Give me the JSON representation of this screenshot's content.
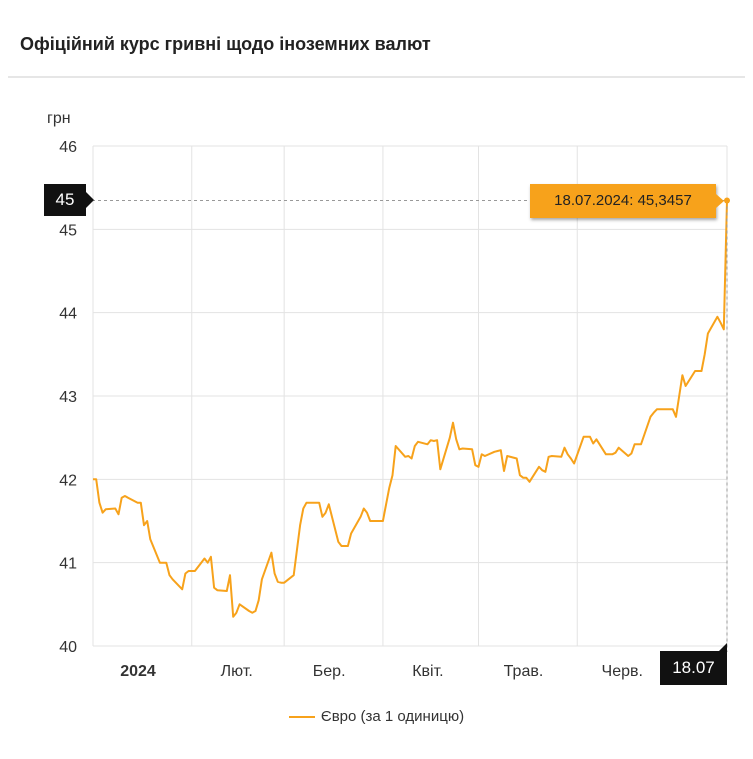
{
  "header": {
    "title": "Офіційний курс гривні щодо іноземних валют"
  },
  "tooltip": {
    "text": "18.07.2024: 45,3457"
  },
  "y_highlight": "45",
  "x_highlight": "18.07",
  "legend": {
    "label": "Євро (за 1 одиницю)"
  },
  "colors": {
    "series": "#f7a21b",
    "grid": "#e3e3e3",
    "flag": "#111111"
  },
  "chart_data": {
    "type": "line",
    "ylabel": "грн",
    "ylim": [
      40,
      46
    ],
    "yticks": [
      "40",
      "41",
      "42",
      "43",
      "44",
      "45",
      "46"
    ],
    "xticks": [
      {
        "label": "2024",
        "date": "2024-01-01",
        "bold": true
      },
      {
        "label": "Лют.",
        "date": "2024-02-01",
        "bold": false
      },
      {
        "label": "Бер.",
        "date": "2024-03-01",
        "bold": false
      },
      {
        "label": "Квіт.",
        "date": "2024-04-01",
        "bold": false
      },
      {
        "label": "Трав.",
        "date": "2024-05-01",
        "bold": false
      },
      {
        "label": "Черв.",
        "date": "2024-06-01",
        "bold": false
      }
    ],
    "xrange": [
      "2024-01-01",
      "2024-07-18"
    ],
    "grid": true,
    "legend_position": "bottom",
    "series": [
      {
        "name": "Євро (за 1 одиницю)",
        "points": [
          [
            "2024-01-01",
            42.0
          ],
          [
            "2024-01-02",
            42.0
          ],
          [
            "2024-01-03",
            41.72
          ],
          [
            "2024-01-04",
            41.6
          ],
          [
            "2024-01-05",
            41.64
          ],
          [
            "2024-01-08",
            41.65
          ],
          [
            "2024-01-09",
            41.58
          ],
          [
            "2024-01-10",
            41.78
          ],
          [
            "2024-01-11",
            41.8
          ],
          [
            "2024-01-12",
            41.78
          ],
          [
            "2024-01-15",
            41.72
          ],
          [
            "2024-01-16",
            41.72
          ],
          [
            "2024-01-17",
            41.45
          ],
          [
            "2024-01-18",
            41.5
          ],
          [
            "2024-01-19",
            41.28
          ],
          [
            "2024-01-22",
            41.0
          ],
          [
            "2024-01-23",
            41.0
          ],
          [
            "2024-01-24",
            41.0
          ],
          [
            "2024-01-25",
            40.85
          ],
          [
            "2024-01-26",
            40.8
          ],
          [
            "2024-01-29",
            40.68
          ],
          [
            "2024-01-30",
            40.87
          ],
          [
            "2024-01-31",
            40.9
          ],
          [
            "2024-02-01",
            40.9
          ],
          [
            "2024-02-02",
            40.9
          ],
          [
            "2024-02-05",
            41.05
          ],
          [
            "2024-02-06",
            41.0
          ],
          [
            "2024-02-07",
            41.07
          ],
          [
            "2024-02-08",
            40.7
          ],
          [
            "2024-02-09",
            40.67
          ],
          [
            "2024-02-12",
            40.66
          ],
          [
            "2024-02-13",
            40.85
          ],
          [
            "2024-02-14",
            40.35
          ],
          [
            "2024-02-15",
            40.4
          ],
          [
            "2024-02-16",
            40.5
          ],
          [
            "2024-02-19",
            40.42
          ],
          [
            "2024-02-20",
            40.4
          ],
          [
            "2024-02-21",
            40.42
          ],
          [
            "2024-02-22",
            40.55
          ],
          [
            "2024-02-23",
            40.8
          ],
          [
            "2024-02-26",
            41.12
          ],
          [
            "2024-02-27",
            40.87
          ],
          [
            "2024-02-28",
            40.77
          ],
          [
            "2024-02-29",
            40.76
          ],
          [
            "2024-03-01",
            40.76
          ],
          [
            "2024-03-04",
            40.85
          ],
          [
            "2024-03-05",
            41.15
          ],
          [
            "2024-03-06",
            41.45
          ],
          [
            "2024-03-07",
            41.65
          ],
          [
            "2024-03-08",
            41.72
          ],
          [
            "2024-03-11",
            41.72
          ],
          [
            "2024-03-12",
            41.72
          ],
          [
            "2024-03-13",
            41.55
          ],
          [
            "2024-03-14",
            41.6
          ],
          [
            "2024-03-15",
            41.7
          ],
          [
            "2024-03-18",
            41.25
          ],
          [
            "2024-03-19",
            41.2
          ],
          [
            "2024-03-20",
            41.2
          ],
          [
            "2024-03-21",
            41.2
          ],
          [
            "2024-03-22",
            41.35
          ],
          [
            "2024-03-25",
            41.55
          ],
          [
            "2024-03-26",
            41.65
          ],
          [
            "2024-03-27",
            41.6
          ],
          [
            "2024-03-28",
            41.5
          ],
          [
            "2024-03-29",
            41.5
          ],
          [
            "2024-04-01",
            41.5
          ],
          [
            "2024-04-02",
            41.7
          ],
          [
            "2024-04-03",
            41.9
          ],
          [
            "2024-04-04",
            42.05
          ],
          [
            "2024-04-05",
            42.4
          ],
          [
            "2024-04-08",
            42.27
          ],
          [
            "2024-04-09",
            42.28
          ],
          [
            "2024-04-10",
            42.25
          ],
          [
            "2024-04-11",
            42.4
          ],
          [
            "2024-04-12",
            42.45
          ],
          [
            "2024-04-15",
            42.42
          ],
          [
            "2024-04-16",
            42.47
          ],
          [
            "2024-04-17",
            42.46
          ],
          [
            "2024-04-18",
            42.47
          ],
          [
            "2024-04-19",
            42.12
          ],
          [
            "2024-04-22",
            42.5
          ],
          [
            "2024-04-23",
            42.68
          ],
          [
            "2024-04-24",
            42.48
          ],
          [
            "2024-04-25",
            42.36
          ],
          [
            "2024-04-26",
            42.37
          ],
          [
            "2024-04-29",
            42.36
          ],
          [
            "2024-04-30",
            42.17
          ],
          [
            "2024-05-01",
            42.15
          ],
          [
            "2024-05-02",
            42.3
          ],
          [
            "2024-05-03",
            42.28
          ],
          [
            "2024-05-06",
            42.33
          ],
          [
            "2024-05-07",
            42.34
          ],
          [
            "2024-05-08",
            42.35
          ],
          [
            "2024-05-09",
            42.1
          ],
          [
            "2024-05-10",
            42.28
          ],
          [
            "2024-05-13",
            42.25
          ],
          [
            "2024-05-14",
            42.05
          ],
          [
            "2024-05-15",
            42.02
          ],
          [
            "2024-05-16",
            42.02
          ],
          [
            "2024-05-17",
            41.97
          ],
          [
            "2024-05-20",
            42.15
          ],
          [
            "2024-05-21",
            42.11
          ],
          [
            "2024-05-22",
            42.09
          ],
          [
            "2024-05-23",
            42.27
          ],
          [
            "2024-05-24",
            42.28
          ],
          [
            "2024-05-27",
            42.27
          ],
          [
            "2024-05-28",
            42.38
          ],
          [
            "2024-05-29",
            42.3
          ],
          [
            "2024-05-30",
            42.25
          ],
          [
            "2024-05-31",
            42.19
          ],
          [
            "2024-06-03",
            42.51
          ],
          [
            "2024-06-04",
            42.51
          ],
          [
            "2024-06-05",
            42.51
          ],
          [
            "2024-06-06",
            42.43
          ],
          [
            "2024-06-07",
            42.48
          ],
          [
            "2024-06-10",
            42.3
          ],
          [
            "2024-06-11",
            42.3
          ],
          [
            "2024-06-12",
            42.3
          ],
          [
            "2024-06-13",
            42.32
          ],
          [
            "2024-06-14",
            42.38
          ],
          [
            "2024-06-17",
            42.28
          ],
          [
            "2024-06-18",
            42.31
          ],
          [
            "2024-06-19",
            42.42
          ],
          [
            "2024-06-20",
            42.42
          ],
          [
            "2024-06-21",
            42.42
          ],
          [
            "2024-06-24",
            42.75
          ],
          [
            "2024-06-25",
            42.8
          ],
          [
            "2024-06-26",
            42.84
          ],
          [
            "2024-06-27",
            42.84
          ],
          [
            "2024-06-28",
            42.84
          ],
          [
            "2024-07-01",
            42.84
          ],
          [
            "2024-07-02",
            42.75
          ],
          [
            "2024-07-03",
            43.0
          ],
          [
            "2024-07-04",
            43.25
          ],
          [
            "2024-07-05",
            43.12
          ],
          [
            "2024-07-08",
            43.3
          ],
          [
            "2024-07-09",
            43.3
          ],
          [
            "2024-07-10",
            43.3
          ],
          [
            "2024-07-11",
            43.5
          ],
          [
            "2024-07-12",
            43.75
          ],
          [
            "2024-07-15",
            43.95
          ],
          [
            "2024-07-16",
            43.88
          ],
          [
            "2024-07-17",
            43.8
          ],
          [
            "2024-07-18",
            45.3457
          ]
        ]
      }
    ]
  }
}
